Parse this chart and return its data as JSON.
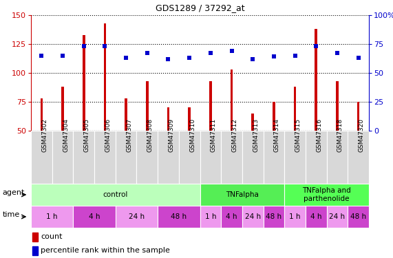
{
  "title": "GDS1289 / 37292_at",
  "samples": [
    "GSM47302",
    "GSM47304",
    "GSM47305",
    "GSM47306",
    "GSM47307",
    "GSM47308",
    "GSM47309",
    "GSM47310",
    "GSM47311",
    "GSM47312",
    "GSM47313",
    "GSM47314",
    "GSM47315",
    "GSM47316",
    "GSM47318",
    "GSM47320"
  ],
  "counts": [
    78,
    88,
    133,
    143,
    78,
    93,
    70,
    70,
    93,
    103,
    65,
    75,
    88,
    138,
    93,
    75
  ],
  "percentile_ranks": [
    65,
    65,
    73,
    73,
    63,
    67,
    62,
    63,
    67,
    69,
    62,
    64,
    65,
    73,
    67,
    63
  ],
  "bar_color": "#cc0000",
  "dot_color": "#0000cc",
  "ylim_left": [
    50,
    150
  ],
  "ylim_right": [
    0,
    100
  ],
  "yticks_left": [
    50,
    75,
    100,
    125,
    150
  ],
  "yticks_right": [
    0,
    25,
    50,
    75,
    100
  ],
  "agent_groups": [
    {
      "label": "control",
      "start": 0,
      "end": 8,
      "color": "#bbffbb"
    },
    {
      "label": "TNFalpha",
      "start": 8,
      "end": 12,
      "color": "#55ee55"
    },
    {
      "label": "TNFalpha and\nparthenolide",
      "start": 12,
      "end": 16,
      "color": "#55ff55"
    }
  ],
  "time_groups": [
    {
      "label": "1 h",
      "start": 0,
      "end": 2,
      "color": "#ee99ee"
    },
    {
      "label": "4 h",
      "start": 2,
      "end": 4,
      "color": "#cc44cc"
    },
    {
      "label": "24 h",
      "start": 4,
      "end": 6,
      "color": "#ee99ee"
    },
    {
      "label": "48 h",
      "start": 6,
      "end": 8,
      "color": "#cc44cc"
    },
    {
      "label": "1 h",
      "start": 8,
      "end": 9,
      "color": "#ee99ee"
    },
    {
      "label": "4 h",
      "start": 9,
      "end": 10,
      "color": "#cc44cc"
    },
    {
      "label": "24 h",
      "start": 10,
      "end": 11,
      "color": "#ee99ee"
    },
    {
      "label": "48 h",
      "start": 11,
      "end": 12,
      "color": "#cc44cc"
    },
    {
      "label": "1 h",
      "start": 12,
      "end": 13,
      "color": "#ee99ee"
    },
    {
      "label": "4 h",
      "start": 13,
      "end": 14,
      "color": "#cc44cc"
    },
    {
      "label": "24 h",
      "start": 14,
      "end": 15,
      "color": "#ee99ee"
    },
    {
      "label": "48 h",
      "start": 15,
      "end": 16,
      "color": "#cc44cc"
    }
  ],
  "legend_count_color": "#cc0000",
  "legend_dot_color": "#0000cc",
  "background_color": "#ffffff",
  "fig_w": 571,
  "fig_h": 375
}
